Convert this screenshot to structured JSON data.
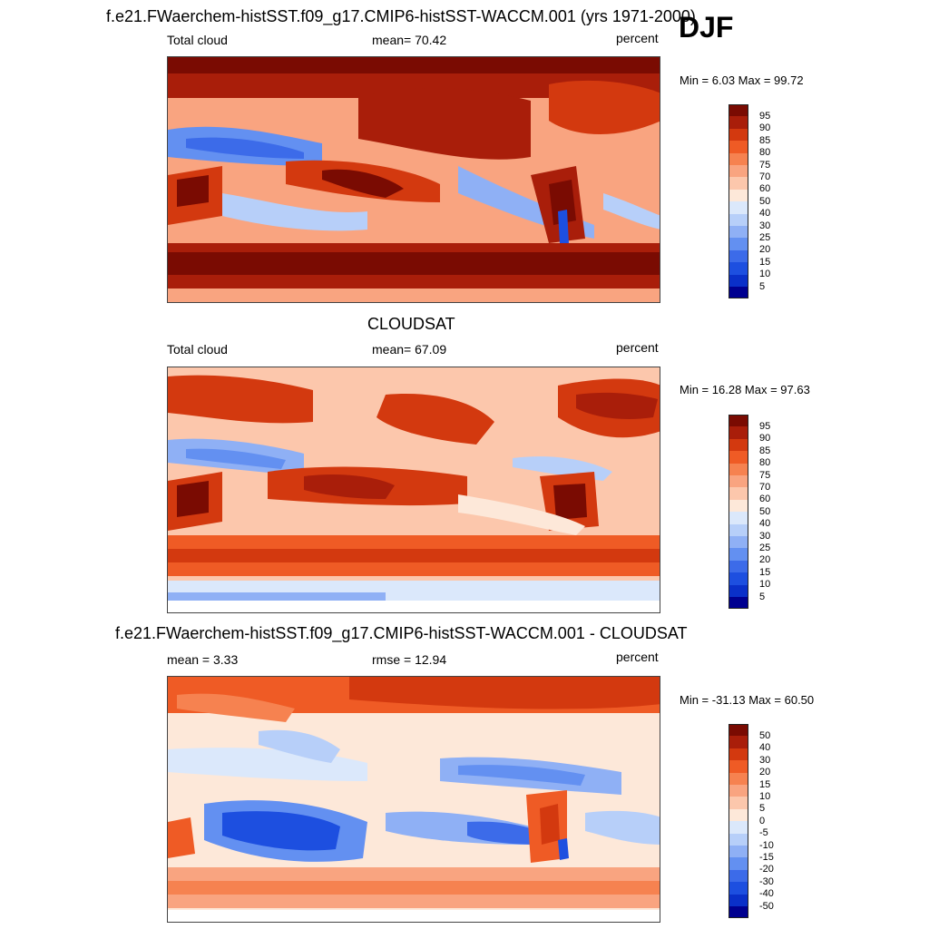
{
  "season": "DJF",
  "colors": {
    "levels_pos": [
      "#7a0b02",
      "#a91e0a",
      "#d3390f",
      "#ef5b25",
      "#f68250",
      "#f9a480",
      "#fcc7ac",
      "#fde8d9"
    ],
    "levels_neg": [
      "#dbe8fb",
      "#b7cff9",
      "#8fb0f5",
      "#6390f1",
      "#3c6be9",
      "#1d4fe0",
      "#0a30c9",
      "#000090"
    ]
  },
  "panels": [
    {
      "title": "f.e21.FWaerchem-histSST.f09_g17.CMIP6-histSST-WACCM.001 (yrs 1971-2000)",
      "left_label": "Total cloud",
      "center_label": "mean=  70.42",
      "units": "percent",
      "minmax": "Min =   6.03 Max =  99.72",
      "colorbar_ticks": [
        "95",
        "90",
        "85",
        "80",
        "75",
        "70",
        "60",
        "50",
        "40",
        "30",
        "25",
        "20",
        "15",
        "10",
        "5"
      ],
      "field_level": "high"
    },
    {
      "title": "CLOUDSAT",
      "left_label": "Total cloud",
      "center_label": "mean=  67.09",
      "units": "percent",
      "minmax": "Min =  16.28 Max =  97.63",
      "colorbar_ticks": [
        "95",
        "90",
        "85",
        "80",
        "75",
        "70",
        "60",
        "50",
        "40",
        "30",
        "25",
        "20",
        "15",
        "10",
        "5"
      ],
      "field_level": "obs"
    },
    {
      "title": "f.e21.FWaerchem-histSST.f09_g17.CMIP6-histSST-WACCM.001 - CLOUDSAT",
      "left_label": "mean =   3.33",
      "center_label": "rmse =  12.94",
      "units": "percent",
      "minmax": "Min = -31.13 Max =  60.50",
      "colorbar_ticks": [
        "50",
        "40",
        "30",
        "20",
        "15",
        "10",
        "5",
        "0",
        "-5",
        "-10",
        "-15",
        "-20",
        "-30",
        "-40",
        "-50"
      ],
      "field_level": "diff"
    }
  ]
}
